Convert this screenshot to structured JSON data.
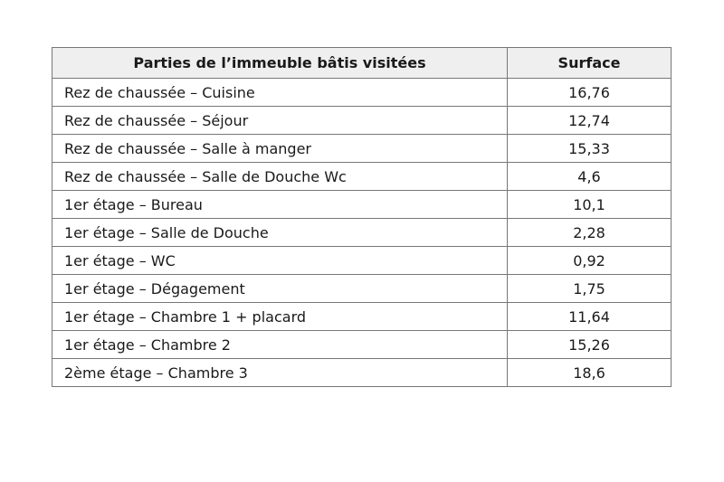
{
  "table": {
    "headers": [
      "Parties de l’immeuble bâtis visitées",
      "Surface"
    ],
    "rows": [
      {
        "part": "Rez de chaussée – Cuisine",
        "surface": "16,76"
      },
      {
        "part": "Rez de chaussée – Séjour",
        "surface": "12,74"
      },
      {
        "part": "Rez de chaussée – Salle à manger",
        "surface": "15,33"
      },
      {
        "part": "Rez de chaussée – Salle de Douche Wc",
        "surface": "4,6"
      },
      {
        "part": "1er étage – Bureau",
        "surface": "10,1"
      },
      {
        "part": "1er étage – Salle de Douche",
        "surface": "2,28"
      },
      {
        "part": "1er étage – WC",
        "surface": "0,92"
      },
      {
        "part": "1er étage – Dégagement",
        "surface": "1,75"
      },
      {
        "part": "1er étage – Chambre 1 + placard",
        "surface": "11,64"
      },
      {
        "part": "1er étage – Chambre 2",
        "surface": "15,26"
      },
      {
        "part": "2ème étage – Chambre 3",
        "surface": "18,6"
      }
    ]
  }
}
